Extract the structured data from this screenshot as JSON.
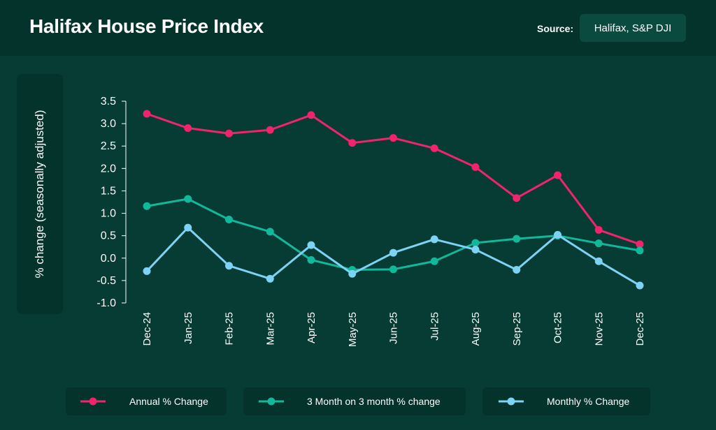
{
  "header": {
    "title": "Halifax House Price Index",
    "source_label": "Source:",
    "source_value": "Halifax, S&P DJI"
  },
  "colors": {
    "background": "#063c33",
    "panel": "#04332b",
    "annual": "#f0246c",
    "three_month": "#12b89a",
    "monthly": "#7dd3f5"
  },
  "chart_data": {
    "type": "line",
    "title": "Halifax House Price Index",
    "xlabel": "",
    "ylabel": "% change (seasonally adjusted)",
    "categories": [
      "Dec-24",
      "Jan-25",
      "Feb-25",
      "Mar-25",
      "Apr-25",
      "May-25",
      "Jun-25",
      "Jul-25",
      "Aug-25",
      "Sep-25",
      "Oct-25",
      "Nov-25",
      "Dec-25"
    ],
    "ylim": [
      -1.0,
      3.5
    ],
    "yticks": [
      "3.5",
      "3.0",
      "2.5",
      "2.0",
      "1.5",
      "1.0",
      "0.5",
      "0.0",
      "-0.5",
      "-1.0"
    ],
    "ytick_values": [
      3.5,
      3.0,
      2.5,
      2.0,
      1.5,
      1.0,
      0.5,
      0.0,
      -0.5,
      -1.0
    ],
    "grid": false,
    "legend_position": "bottom",
    "series": [
      {
        "name": "Annual % Change",
        "color": "#f0246c",
        "values": [
          3.22,
          2.9,
          2.78,
          2.86,
          3.19,
          2.57,
          2.68,
          2.45,
          2.03,
          1.34,
          1.85,
          0.63,
          0.31
        ]
      },
      {
        "name": "3 Month on 3 month % change",
        "color": "#12b89a",
        "values": [
          1.16,
          1.32,
          0.86,
          0.59,
          -0.04,
          -0.26,
          -0.25,
          -0.07,
          0.34,
          0.43,
          0.5,
          0.33,
          0.17
        ]
      },
      {
        "name": "Monthly % Change",
        "color": "#7dd3f5",
        "values": [
          -0.29,
          0.68,
          -0.17,
          -0.46,
          0.29,
          -0.35,
          0.12,
          0.42,
          0.19,
          -0.26,
          0.52,
          -0.07,
          -0.61
        ]
      }
    ]
  }
}
